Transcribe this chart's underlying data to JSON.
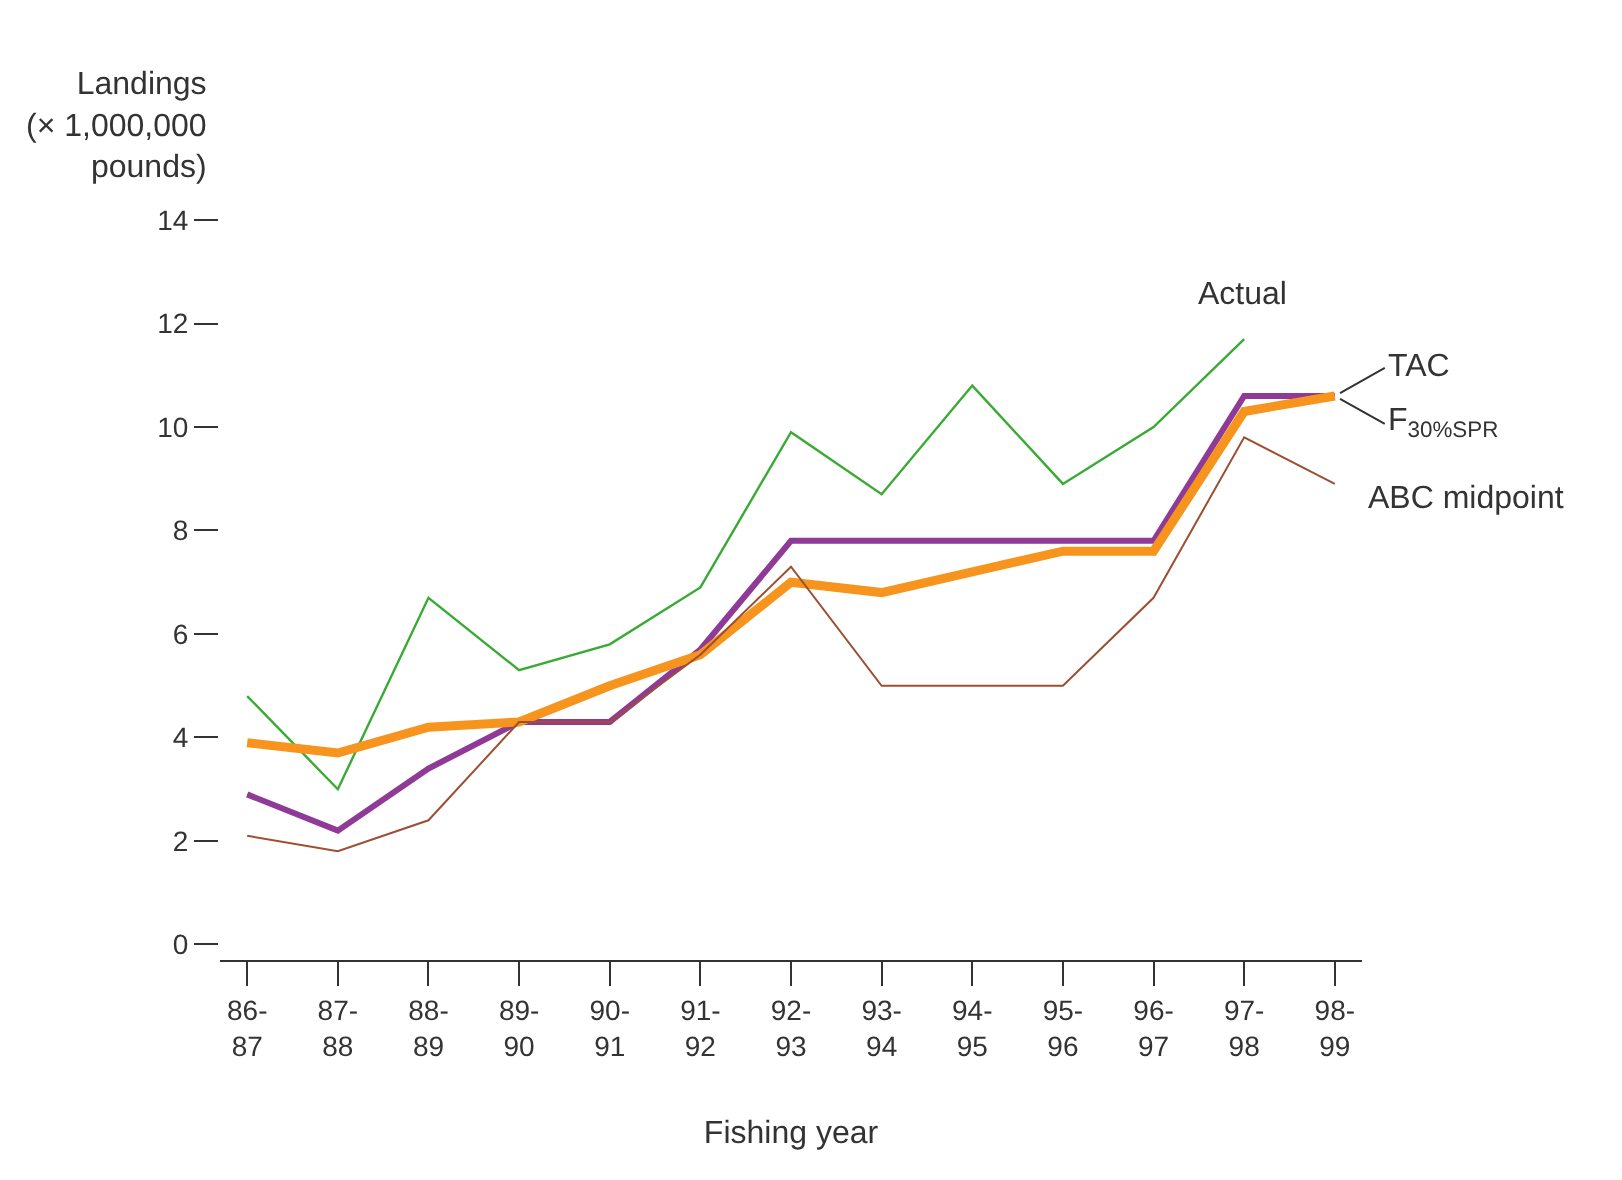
{
  "chart_data": {
    "type": "line",
    "ylabel": "Landings\n(× 1,000,000\npounds)",
    "xlabel": "Fishing year",
    "categories": [
      "86-\n87",
      "87-\n88",
      "88-\n89",
      "89-\n90",
      "90-\n91",
      "91-\n92",
      "92-\n93",
      "93-\n94",
      "94-\n95",
      "95-\n96",
      "96-\n97",
      "97-\n98",
      "98-\n99"
    ],
    "ylim": [
      -0.3,
      14
    ],
    "yticks": [
      0,
      2,
      4,
      6,
      8,
      10,
      12,
      14
    ],
    "legend": false,
    "marker": "none",
    "line_style": "solid",
    "series": [
      {
        "name": "Actual",
        "color": "#3aaa35",
        "values": [
          4.8,
          3.0,
          6.7,
          5.3,
          5.8,
          6.9,
          9.9,
          8.7,
          10.8,
          8.9,
          10.0,
          11.7,
          null
        ]
      },
      {
        "name": "TAC",
        "color": "#8e3a96",
        "values": [
          2.9,
          2.2,
          3.4,
          4.3,
          4.3,
          5.7,
          7.8,
          7.8,
          7.8,
          7.8,
          7.8,
          10.6,
          10.6
        ]
      },
      {
        "name": "F$_{30%SPR}$",
        "color": "#f7941d",
        "values": [
          3.9,
          3.7,
          4.2,
          4.3,
          5.0,
          5.6,
          7.0,
          6.8,
          7.2,
          7.6,
          7.6,
          10.3,
          10.6
        ]
      },
      {
        "name": "ABC midpoint",
        "color": "#9c4f32",
        "values": [
          2.1,
          1.8,
          2.4,
          4.3,
          4.3,
          5.6,
          7.3,
          5.0,
          5.0,
          5.0,
          6.7,
          9.8,
          8.9
        ]
      }
    ]
  }
}
